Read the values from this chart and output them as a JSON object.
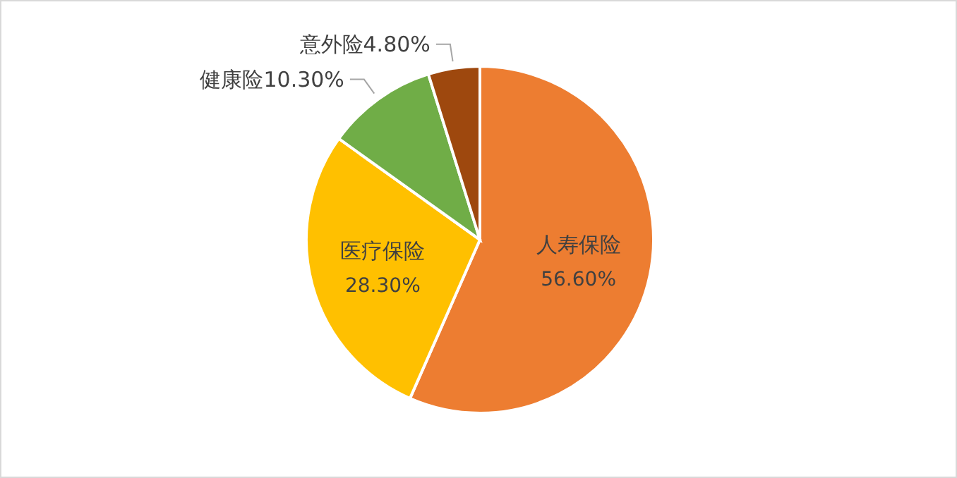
{
  "chart_data": {
    "type": "pie",
    "categories": [
      "人寿保险",
      "医疗保险",
      "健康险",
      "意外险"
    ],
    "values": [
      56.6,
      28.3,
      10.3,
      4.8
    ],
    "colors": [
      "#ed7d31",
      "#ffc000",
      "#70ad47",
      "#9e480e"
    ],
    "value_labels": [
      "56.60%",
      "28.30%",
      "10.30%",
      "4.80%"
    ],
    "legend": false
  }
}
